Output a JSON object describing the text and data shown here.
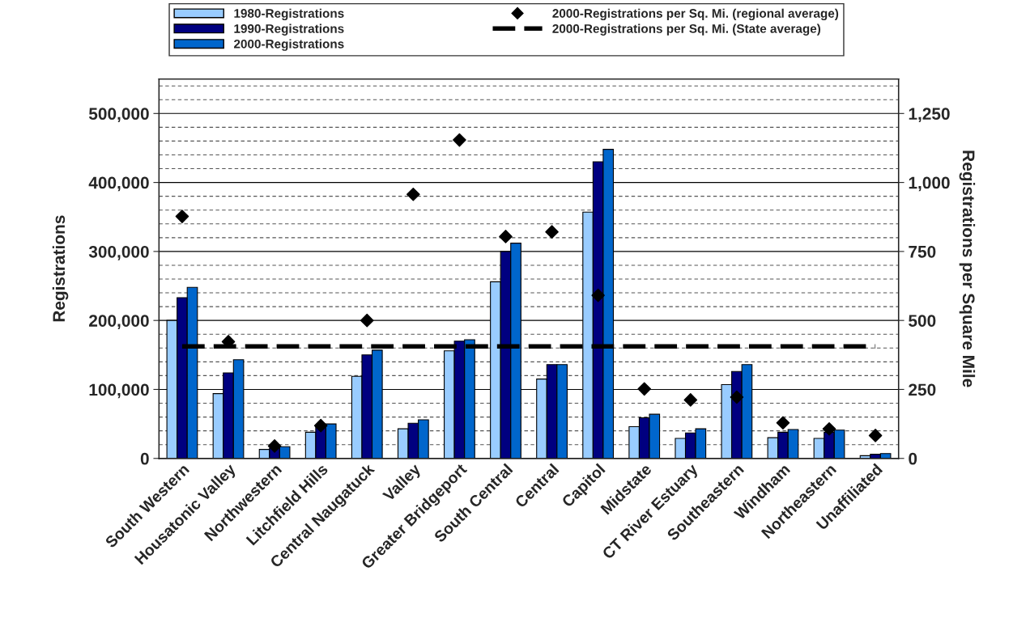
{
  "chart_data": {
    "type": "bar",
    "xlabel": null,
    "ylabel": "Registrations",
    "y2label": "Registrations per Square Mile",
    "categories": [
      "South Western",
      "Housatonic Valley",
      "Northwestern",
      "Litchfield Hills",
      "Central Naugatuck",
      "Valley",
      "Greater Bridgeport",
      "South Central",
      "Central",
      "Capitol",
      "Midstate",
      "CT River Estuary",
      "Southeastern",
      "Windham",
      "Northeastern",
      "Unaffiliated"
    ],
    "series": [
      {
        "name": "1980-Registrations",
        "color": "#99ccff",
        "values": [
          200000,
          94000,
          13000,
          38000,
          119000,
          43000,
          156000,
          256000,
          115000,
          357000,
          46000,
          29000,
          107000,
          30000,
          29000,
          4000
        ]
      },
      {
        "name": "1990-Registrations",
        "color": "#000080",
        "values": [
          233000,
          124000,
          15000,
          46000,
          150000,
          51000,
          170000,
          300000,
          136000,
          430000,
          59000,
          37000,
          126000,
          38000,
          38000,
          6000
        ]
      },
      {
        "name": "2000-Registrations",
        "color": "#0066cc",
        "values": [
          248000,
          143000,
          17000,
          50000,
          157000,
          56000,
          172000,
          312000,
          136000,
          448000,
          64000,
          43000,
          136000,
          42000,
          41000,
          7000
        ]
      },
      {
        "name": "2000-Registrations per Sq. Mi. (regional average)",
        "type": "scatter",
        "axis": "y2",
        "color": "#000000",
        "marker": "diamond",
        "values": [
          877,
          423,
          45,
          119,
          500,
          957,
          1154,
          804,
          821,
          591,
          252,
          212,
          222,
          129,
          107,
          83
        ]
      }
    ],
    "ref_lines": [
      {
        "axis": "y2",
        "value": 406,
        "label": "2000-Registrations per Sq. Mi. (State average)",
        "color": "#000000",
        "line_style": "dashed"
      }
    ],
    "ylim": [
      0,
      550000
    ],
    "yticks": [
      {
        "value": 0,
        "label": "0"
      },
      {
        "value": 100000,
        "label": "100,000"
      },
      {
        "value": 200000,
        "label": "200,000"
      },
      {
        "value": 300000,
        "label": "300,000"
      },
      {
        "value": 400000,
        "label": "400,000"
      },
      {
        "value": 500000,
        "label": "500,000"
      }
    ],
    "y2lim": [
      0,
      1375
    ],
    "y2ticks": [
      0,
      250,
      500,
      750,
      {
        "value": 1000,
        "label": "1,000"
      },
      {
        "value": 1250,
        "label": "1,250"
      }
    ],
    "grid": "y",
    "legend": "top"
  }
}
